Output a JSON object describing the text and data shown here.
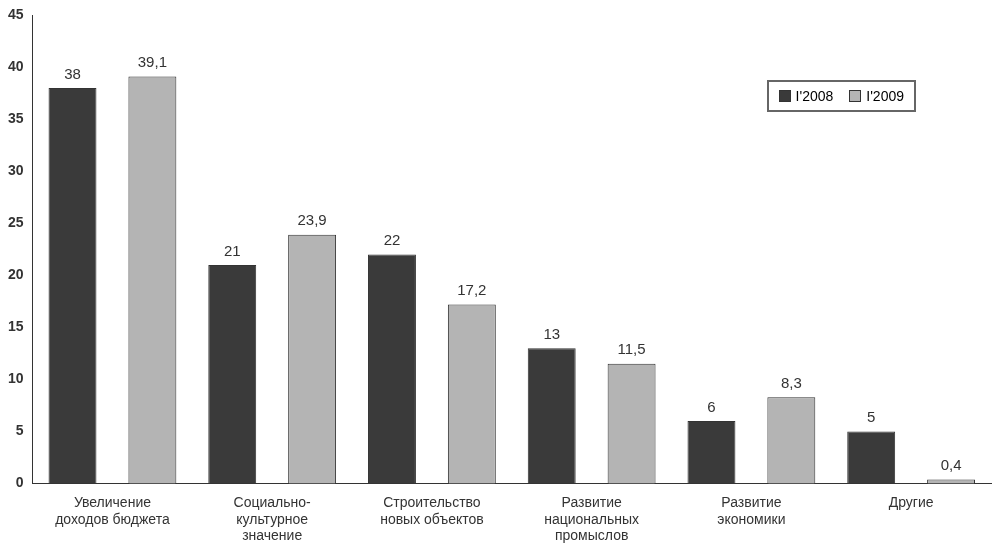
{
  "chart_data": {
    "type": "bar",
    "categories": [
      "Увеличение\nдоходов бюджета",
      "Социально-\nкультурное\nзначение",
      "Строительство\nновых объектов",
      "Развитие\nнациональных\nпромыслов",
      "Развитие\nэкономики",
      "Другие"
    ],
    "series": [
      {
        "name": "I'2008",
        "color": "#3a3a3a",
        "values": [
          38,
          21,
          22,
          13,
          6,
          5
        ],
        "value_labels": [
          "38",
          "21",
          "22",
          "13",
          "6",
          "5"
        ]
      },
      {
        "name": "I'2009",
        "color": "#b4b4b4",
        "values": [
          39.1,
          23.9,
          17.2,
          11.5,
          8.3,
          0.4
        ],
        "value_labels": [
          "39,1",
          "23,9",
          "17,2",
          "11,5",
          "8,3",
          "0,4"
        ]
      }
    ],
    "ylim": [
      0,
      45
    ],
    "yticks": [
      0,
      5,
      10,
      15,
      20,
      25,
      30,
      35,
      40,
      45
    ],
    "grid": false,
    "legend": "top right"
  }
}
